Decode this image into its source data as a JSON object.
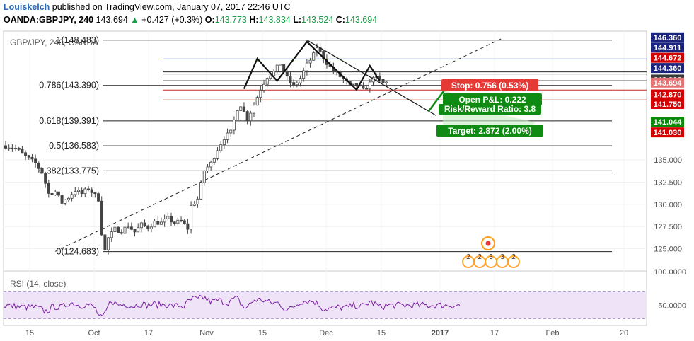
{
  "header": {
    "author": "Louiskelch",
    "published_text": "published on TradingView.com, January 07, 2017 22:46 UTC",
    "symbol": "OANDA:GBPJPY, 240",
    "last": "143.694",
    "change": "+0.427 (+0.3%)",
    "o_label": "O:",
    "o_value": "143.773",
    "h_label": "H:",
    "h_value": "143.834",
    "l_label": "L:",
    "l_value": "143.524",
    "c_label": "C:",
    "c_value": "143.694"
  },
  "chart_data": [
    {
      "type": "candlestick",
      "title": "GBP/JPY, 240, OANDA",
      "ylim": [
        122.5,
        149.5
      ],
      "y_ticks": [
        125.0,
        127.5,
        130.0,
        132.5,
        135.0
      ],
      "y_tick_labels": [
        "125.000",
        "127.500",
        "130.000",
        "132.500",
        "135.000"
      ],
      "x_tick_labels": [
        "15",
        "Oct",
        "17",
        "Nov",
        "15",
        "Dec",
        "15",
        "2017",
        "17",
        "Feb",
        "20"
      ],
      "price_path": [
        [
          0,
          136.6
        ],
        [
          3,
          136.3
        ],
        [
          6,
          135.4
        ],
        [
          9,
          134.6
        ],
        [
          11,
          133.6
        ],
        [
          13,
          131.2
        ],
        [
          15,
          131.4
        ],
        [
          17,
          130.2
        ],
        [
          19,
          130.8
        ],
        [
          21,
          131.6
        ],
        [
          23,
          131.2
        ],
        [
          25,
          131.8
        ],
        [
          27,
          131.0
        ],
        [
          28,
          130.6
        ],
        [
          29,
          126.8
        ],
        [
          30,
          124.8
        ],
        [
          31,
          126.2
        ],
        [
          33,
          127.2
        ],
        [
          35,
          127.0
        ],
        [
          37,
          127.6
        ],
        [
          39,
          126.9
        ],
        [
          41,
          127.7
        ],
        [
          43,
          127.4
        ],
        [
          45,
          128.0
        ],
        [
          47,
          127.9
        ],
        [
          49,
          128.4
        ],
        [
          51,
          127.9
        ],
        [
          53,
          128.1
        ],
        [
          55,
          127.3
        ],
        [
          56,
          129.8
        ],
        [
          58,
          130.6
        ],
        [
          60,
          133.8
        ],
        [
          62,
          134.6
        ],
        [
          64,
          136.2
        ],
        [
          66,
          137.5
        ],
        [
          68,
          138.1
        ],
        [
          70,
          140.8
        ],
        [
          71,
          141.2
        ],
        [
          73,
          139.6
        ],
        [
          75,
          141.2
        ],
        [
          77,
          143.0
        ],
        [
          79,
          144.4
        ],
        [
          81,
          144.9
        ],
        [
          83,
          145.9
        ],
        [
          85,
          144.2
        ],
        [
          87,
          143.3
        ],
        [
          89,
          144.2
        ],
        [
          91,
          145.7
        ],
        [
          93,
          146.8
        ],
        [
          94,
          147.7
        ],
        [
          96,
          146.5
        ],
        [
          98,
          145.4
        ],
        [
          100,
          144.7
        ],
        [
          102,
          144.1
        ],
        [
          104,
          143.3
        ],
        [
          106,
          143.5
        ],
        [
          108,
          142.8
        ],
        [
          110,
          143.6
        ],
        [
          111,
          144.5
        ],
        [
          113,
          143.9
        ],
        [
          114,
          143.6
        ],
        [
          115,
          143.7
        ]
      ],
      "fib_levels": [
        {
          "ratio": "1",
          "price": 148.483,
          "label": "1(148.483)"
        },
        {
          "ratio": "0.786",
          "price": 143.39,
          "label": "0.786(143.390)"
        },
        {
          "ratio": "0.618",
          "price": 139.391,
          "label": "0.618(139.391)"
        },
        {
          "ratio": "0.5",
          "price": 136.583,
          "label": "0.5(136.583)"
        },
        {
          "ratio": "0.382",
          "price": 133.775,
          "label": "0.382(133.775)"
        },
        {
          "ratio": "0",
          "price": 124.683,
          "label": "0(124.683)"
        }
      ],
      "horizontal_lines": [
        {
          "price": 146.36,
          "color": "#1a237e"
        },
        {
          "price": 144.911,
          "color": "#2a2a2a"
        },
        {
          "price": 144.672,
          "color": "#2a2a2a"
        },
        {
          "price": 143.916,
          "color": "#2a2a2a"
        },
        {
          "price": 142.87,
          "color": "#c62828"
        },
        {
          "price": 141.75,
          "color": "#c62828"
        }
      ],
      "price_tags": [
        {
          "price": 148.8,
          "text": "146.360",
          "bg": "#1a237e",
          "fg": "#ffffff"
        },
        {
          "price": 147.65,
          "text": "144.911",
          "bg": "#1a237e",
          "fg": "#ffffff"
        },
        {
          "price": 146.5,
          "text": "144.672",
          "bg": "#d50000",
          "fg": "#ffffff"
        },
        {
          "price": 145.35,
          "text": "144.360",
          "bg": "#1a237e",
          "fg": "#ffffff"
        },
        {
          "price": 144.05,
          "text": "143.916",
          "bg": "#3a3a3a",
          "fg": "#ffffff"
        },
        {
          "price": 143.7,
          "text": "143.694",
          "bg": "#e57373",
          "fg": "#ffffff"
        },
        {
          "price": 142.37,
          "text": "142.870",
          "bg": "#d50000",
          "fg": "#ffffff"
        },
        {
          "price": 141.3,
          "text": "141.750",
          "bg": "#d50000",
          "fg": "#ffffff"
        },
        {
          "price": 139.3,
          "text": "141.044",
          "bg": "#0a8a0a",
          "fg": "#ffffff"
        },
        {
          "price": 138.1,
          "text": "141.030",
          "bg": "#d50000",
          "fg": "#ffffff"
        }
      ],
      "trendline": {
        "from": [
          15,
          124.7
        ],
        "to": [
          150,
          148.7
        ]
      },
      "zigzag": [
        [
          72,
          143.0
        ],
        [
          76,
          146.4
        ],
        [
          82,
          143.9
        ],
        [
          91,
          148.3
        ],
        [
          106,
          142.9
        ],
        [
          110,
          145.6
        ],
        [
          113,
          143.9
        ]
      ],
      "angle_line": {
        "from": [
          91,
          148.483
        ],
        "to": [
          130,
          140.0
        ]
      },
      "position": {
        "stop_text": "Stop: 0.756 (0.53%)",
        "pnl_text": "Open P&L: 0.222",
        "rr_text": "Risk/Reward Ratio: 3.8",
        "target_text": "Target: 2.872 (2.00%)",
        "stop_color": "#e53935",
        "target_color": "#0f8a12",
        "pnl_color": "#0f8a12"
      },
      "event_markers": [
        "2",
        "2",
        "3",
        "3",
        "2"
      ]
    },
    {
      "type": "line",
      "title": "RSI (14, close)",
      "ylim": [
        20,
        100
      ],
      "y_ticks": [
        50,
        100
      ],
      "y_tick_labels": [
        "50.0000",
        "100.0000"
      ],
      "band": [
        30,
        70
      ],
      "color": "#7b1fa2",
      "band_color": "#efe3f7"
    }
  ]
}
